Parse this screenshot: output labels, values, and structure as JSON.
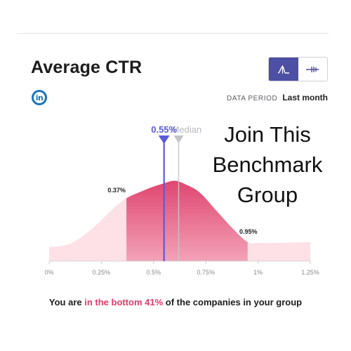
{
  "header": {
    "title": "Average CTR",
    "data_period_label": "DATA PERIOD",
    "data_period_value": "Last month",
    "social_icon": "linkedin-icon",
    "view_toggle": [
      {
        "icon": "distribution-curve-icon",
        "active": true
      },
      {
        "icon": "range-slider-icon",
        "active": false
      }
    ]
  },
  "overlay": {
    "lines": [
      "Join This",
      "Benchmark",
      "Group"
    ]
  },
  "footer": {
    "prefix": "You are ",
    "highlight": "in the bottom 41%",
    "suffix": " of the companies in your group"
  },
  "colors": {
    "accent": "#4c4fa3",
    "marker": "#5b5bd6",
    "median": "#c4c4c8",
    "distribution_light": "#fde1e7",
    "distribution_core_top": "#df4670",
    "distribution_core_bottom": "#f3a2b7",
    "highlight_text": "#e23a66"
  },
  "chart_data": {
    "type": "area",
    "x_ticks": [
      0,
      0.25,
      0.5,
      0.75,
      1.0,
      1.25
    ],
    "x_tick_labels": [
      "0%",
      "0.25%",
      "0.5%",
      "0.75%",
      "1%",
      "1.25%"
    ],
    "xlim": [
      0,
      1.25
    ],
    "distribution": {
      "x": [
        0.0,
        0.1,
        0.2,
        0.3,
        0.37,
        0.45,
        0.5,
        0.55,
        0.6,
        0.65,
        0.72,
        0.8,
        0.88,
        0.95,
        1.0,
        1.1,
        1.25
      ],
      "density": [
        0.17,
        0.21,
        0.38,
        0.62,
        0.76,
        0.85,
        0.9,
        0.94,
        0.97,
        0.93,
        0.83,
        0.61,
        0.39,
        0.23,
        0.22,
        0.22,
        0.23
      ]
    },
    "core_range": {
      "from": 0.37,
      "to": 0.95,
      "from_label": "0.37%",
      "to_label": "0.95%"
    },
    "your_value": {
      "value": 0.55,
      "label": "0.55%"
    },
    "median": {
      "value": 0.62,
      "label": "Median"
    }
  }
}
